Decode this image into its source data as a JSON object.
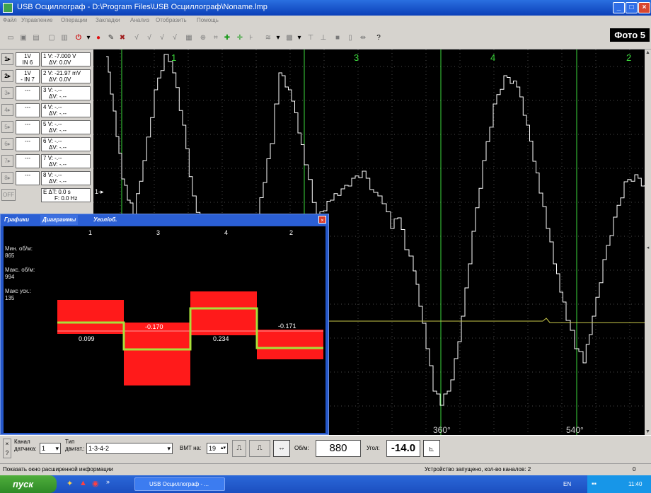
{
  "window": {
    "title": "USB Осциллограф - D:\\Program Files\\USB Осциллограф\\Noname.lmp"
  },
  "menu": [
    "Файл",
    "Управление",
    "Операции",
    "Закладки",
    "Анализ",
    "Отобразить",
    "Помощь"
  ],
  "photo_label": "Фото 5",
  "channels": [
    {
      "btn": "1▸",
      "scale": "1V",
      "input": "IN 6",
      "num": "1",
      "v_line": "V: -7.000 V",
      "dv_line": "ΔV:   0.0V",
      "active": true
    },
    {
      "btn": "2▸",
      "scale": "1V",
      "input": "- IN 7",
      "num": "2",
      "v_line": "V: -21.97 mV",
      "dv_line": "ΔV:   0.0V",
      "active": true
    },
    {
      "btn": "3▸",
      "scale": "---",
      "input": "",
      "num": "3",
      "v_line": "V:   -.--",
      "dv_line": "ΔV:  -.--",
      "active": false
    },
    {
      "btn": "4▸",
      "scale": "---",
      "input": "",
      "num": "4",
      "v_line": "V:   -.--",
      "dv_line": "ΔV:  -.--",
      "active": false
    },
    {
      "btn": "5▸",
      "scale": "---",
      "input": "",
      "num": "5",
      "v_line": "V:   -.--",
      "dv_line": "ΔV:  -.--",
      "active": false
    },
    {
      "btn": "6▸",
      "scale": "---",
      "input": "",
      "num": "6",
      "v_line": "V:   -.--",
      "dv_line": "ΔV:  -.--",
      "active": false
    },
    {
      "btn": "7▸",
      "scale": "---",
      "input": "",
      "num": "7",
      "v_line": "V:   -.--",
      "dv_line": "ΔV:  -.--",
      "active": false
    },
    {
      "btn": "8▸",
      "scale": "---",
      "input": "",
      "num": "8",
      "v_line": "V:   -.--",
      "dv_line": "ΔV:  -.--",
      "active": false
    }
  ],
  "time_readout": {
    "dt": "E ΔT:   0.0 s",
    "f": "F:  0.0 Hz"
  },
  "trigger_btn": "OFF",
  "scope": {
    "cylinder_markers": [
      "1",
      "3",
      "4",
      "2"
    ],
    "angle_labels": [
      "360°",
      "540°"
    ],
    "cursor_label": "1-▸"
  },
  "diagram": {
    "tabs": [
      "Графики",
      "Диаграммы",
      "Угол/об."
    ],
    "cyl_headers": [
      "1",
      "3",
      "4",
      "2"
    ],
    "min_rpm_label": "Мин. об/м:",
    "min_rpm_value": "865",
    "max_rpm_label": "Макс. об/м:",
    "max_rpm_value": "994",
    "max_acc_label": "Макс уск.:",
    "max_acc_value": "135",
    "bars": [
      {
        "cyl": "1",
        "label": "0.099"
      },
      {
        "cyl": "3",
        "label": "-0.170"
      },
      {
        "cyl": "4",
        "label": "0.234"
      },
      {
        "cyl": "2",
        "label": "-0.171"
      }
    ]
  },
  "bottom": {
    "sensor_channel_label1": "Канал",
    "sensor_channel_label2": "датчика:",
    "sensor_channel_value": "1",
    "engine_type_label1": "Тип",
    "engine_type_label2": "двигат.:",
    "engine_type_value": "1-3-4-2",
    "tdc_label": "ВМТ на:",
    "tdc_value": "19",
    "rpm_label": "Об/м:",
    "rpm_value": "880",
    "angle_label": "Угол:",
    "angle_value": "-14.0"
  },
  "status": {
    "left": "Показать окно расширенной информации",
    "middle": "Устройство запущено, кол-во каналов: 2",
    "right": "0"
  },
  "taskbar": {
    "start": "пуск",
    "task": "USB Осциллограф - ...",
    "lang": "EN",
    "clock": "11:40"
  },
  "colors": {
    "accent": "#2456c8",
    "grid": "#4a4a4a",
    "marker": "#3cd93c",
    "trace": "#ffffff",
    "bar": "#ff1a1a",
    "rpm_line": "#a8e03a"
  }
}
